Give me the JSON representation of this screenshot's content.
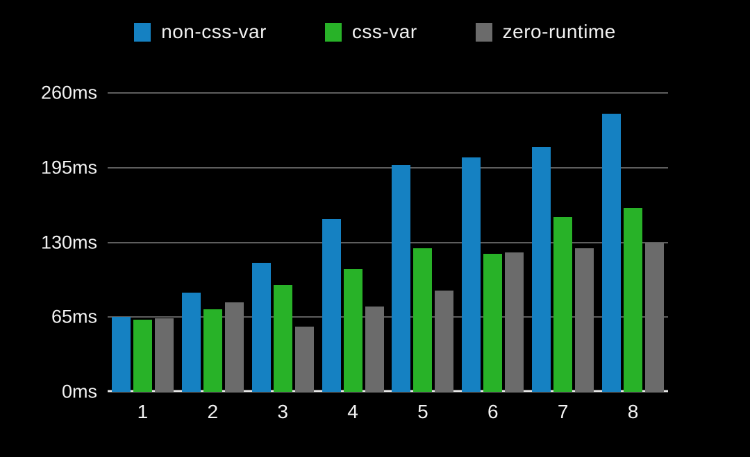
{
  "chart_data": {
    "type": "bar",
    "title": "",
    "categories": [
      "1",
      "2",
      "3",
      "4",
      "5",
      "6",
      "7",
      "8"
    ],
    "series": [
      {
        "name": "non-css-var",
        "color": "#1581c2",
        "values": [
          65,
          86,
          112,
          150,
          197,
          204,
          213,
          242
        ]
      },
      {
        "name": "css-var",
        "color": "#28b228",
        "values": [
          63,
          72,
          93,
          107,
          125,
          120,
          152,
          160
        ]
      },
      {
        "name": "zero-runtime",
        "color": "#6b6b6b",
        "values": [
          64,
          78,
          57,
          74,
          88,
          121,
          125,
          130
        ]
      }
    ],
    "xlabel": "",
    "ylabel": "",
    "y_ticks": [
      "0ms",
      "65ms",
      "130ms",
      "195ms",
      "260ms"
    ],
    "y_tick_values": [
      0,
      65,
      130,
      195,
      260
    ],
    "ylim": [
      0,
      260
    ],
    "grid": true,
    "legend_position": "top",
    "colors": {
      "background": "#000000",
      "text": "#f2f2f2",
      "gridline": "#bdbdbd",
      "baseline": "#ececec"
    }
  }
}
